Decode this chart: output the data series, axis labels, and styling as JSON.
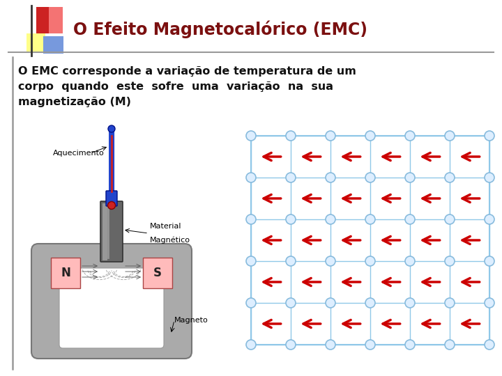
{
  "title": "O Efeito Magnetocalórico (EMC)",
  "title_color": "#7B1010",
  "body_text_line1": "O EMC corresponde a variação de temperatura de um",
  "body_text_line2": "corpo  quando  este  sofre  uma  variação  na  sua",
  "body_text_line3": "magnetização (M)",
  "bg_color": "#FFFFFF",
  "border_color": "#BBBBBB",
  "header_line_color": "#999999",
  "deco_red": "#CC2222",
  "deco_pink": "#FF8888",
  "deco_yellow": "#FFFF88",
  "deco_blue": "#7799DD",
  "arrow_color": "#CC0000",
  "grid_line_color": "#90C8E8",
  "node_color": "#DDEEFF",
  "node_edge_color": "#88BBDD",
  "magnet_gray_dark": "#666666",
  "magnet_gray_mid": "#999999",
  "magnet_gray_light": "#BBBBBB",
  "magnet_n_color": "#FFBBBB",
  "magnet_s_color": "#FFBBBB",
  "base_color": "#AAAAAA",
  "base_edge": "#777777",
  "therm_blue": "#2244CC",
  "therm_red": "#CC2222",
  "therm_dark": "#001188",
  "label_aquecimento": "Aquecimento",
  "label_material_line1": "Material",
  "label_material_line2": "Magnético",
  "label_magneto": "Magneto",
  "label_N": "N",
  "label_S": "S",
  "rows": 5,
  "cols": 6,
  "fig_w": 7.2,
  "fig_h": 5.4,
  "dpi": 100
}
